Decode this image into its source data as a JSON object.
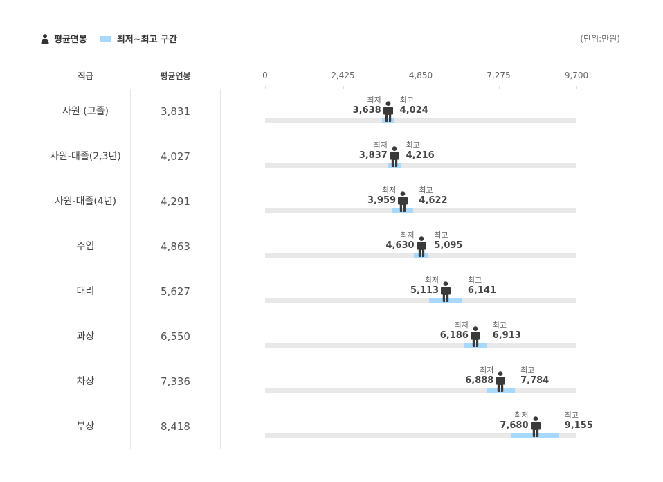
{
  "legend": {
    "avg_label": "평균연봉",
    "range_label": "최저~최고 구간"
  },
  "unit_label": "(단위:만원)",
  "colors": {
    "range": "#a8d8fb",
    "track": "#e8e8e8",
    "marker": "#3a3a3a"
  },
  "header": {
    "grade": "직급",
    "avg": "평균연봉"
  },
  "labels": {
    "min": "최저",
    "max": "최고"
  },
  "chart_data": {
    "type": "range-bar",
    "xlim": [
      0,
      9700
    ],
    "ticks": [
      "0",
      "2,425",
      "4,850",
      "7,275",
      "9,700"
    ],
    "tick_values": [
      0,
      2425,
      4850,
      7275,
      9700
    ],
    "rows": [
      {
        "grade": "사원 (고졸)",
        "avg": 3831,
        "avg_text": "3,831",
        "min": 3638,
        "min_text": "3,638",
        "max": 4024,
        "max_text": "4,024"
      },
      {
        "grade": "사원-대졸(2,3년)",
        "avg": 4027,
        "avg_text": "4,027",
        "min": 3837,
        "min_text": "3,837",
        "max": 4216,
        "max_text": "4,216"
      },
      {
        "grade": "사원-대졸(4년)",
        "avg": 4291,
        "avg_text": "4,291",
        "min": 3959,
        "min_text": "3,959",
        "max": 4622,
        "max_text": "4,622"
      },
      {
        "grade": "주임",
        "avg": 4863,
        "avg_text": "4,863",
        "min": 4630,
        "min_text": "4,630",
        "max": 5095,
        "max_text": "5,095"
      },
      {
        "grade": "대리",
        "avg": 5627,
        "avg_text": "5,627",
        "min": 5113,
        "min_text": "5,113",
        "max": 6141,
        "max_text": "6,141"
      },
      {
        "grade": "과장",
        "avg": 6550,
        "avg_text": "6,550",
        "min": 6186,
        "min_text": "6,186",
        "max": 6913,
        "max_text": "6,913"
      },
      {
        "grade": "차장",
        "avg": 7336,
        "avg_text": "7,336",
        "min": 6888,
        "min_text": "6,888",
        "max": 7784,
        "max_text": "7,784"
      },
      {
        "grade": "부장",
        "avg": 8418,
        "avg_text": "8,418",
        "min": 7680,
        "min_text": "7,680",
        "max": 9155,
        "max_text": "9,155"
      }
    ]
  }
}
